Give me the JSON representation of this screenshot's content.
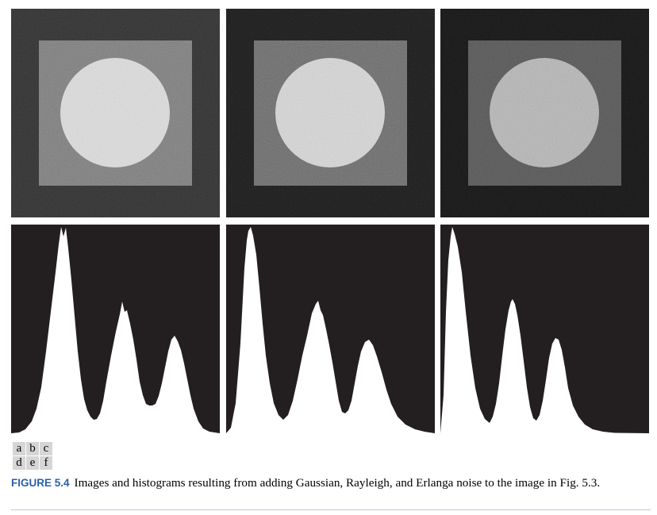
{
  "figure": {
    "panels": [
      {
        "id": "a",
        "kind": "image",
        "noise": "Gaussian",
        "background": "#5b5b5b",
        "square": "#9a9a9a",
        "circle": "#cfcfcf"
      },
      {
        "id": "b",
        "kind": "image",
        "noise": "Rayleigh",
        "background": "#3f3f3f",
        "square": "#8d8d8d",
        "circle": "#cbcbcb"
      },
      {
        "id": "c",
        "kind": "image",
        "noise": "Erlanga",
        "background": "#3a3a3a",
        "square": "#7e7e7e",
        "circle": "#b9b9b9"
      },
      {
        "id": "d",
        "kind": "histogram",
        "noise": "Gaussian",
        "color": "#ffffff",
        "bg": "#231f20"
      },
      {
        "id": "e",
        "kind": "histogram",
        "noise": "Rayleigh",
        "color": "#ffffff",
        "bg": "#231f20"
      },
      {
        "id": "f",
        "kind": "histogram",
        "noise": "Erlanga",
        "color": "#ffffff",
        "bg": "#231f20"
      }
    ],
    "panel_labels": [
      "a",
      "b",
      "c",
      "d",
      "e",
      "f"
    ],
    "caption_label": "FIGURE 5.4",
    "caption_text": "Images and histograms resulting from adding Gaussian, Rayleigh, and Erlanga noise to the image in Fig. 5.3."
  }
}
